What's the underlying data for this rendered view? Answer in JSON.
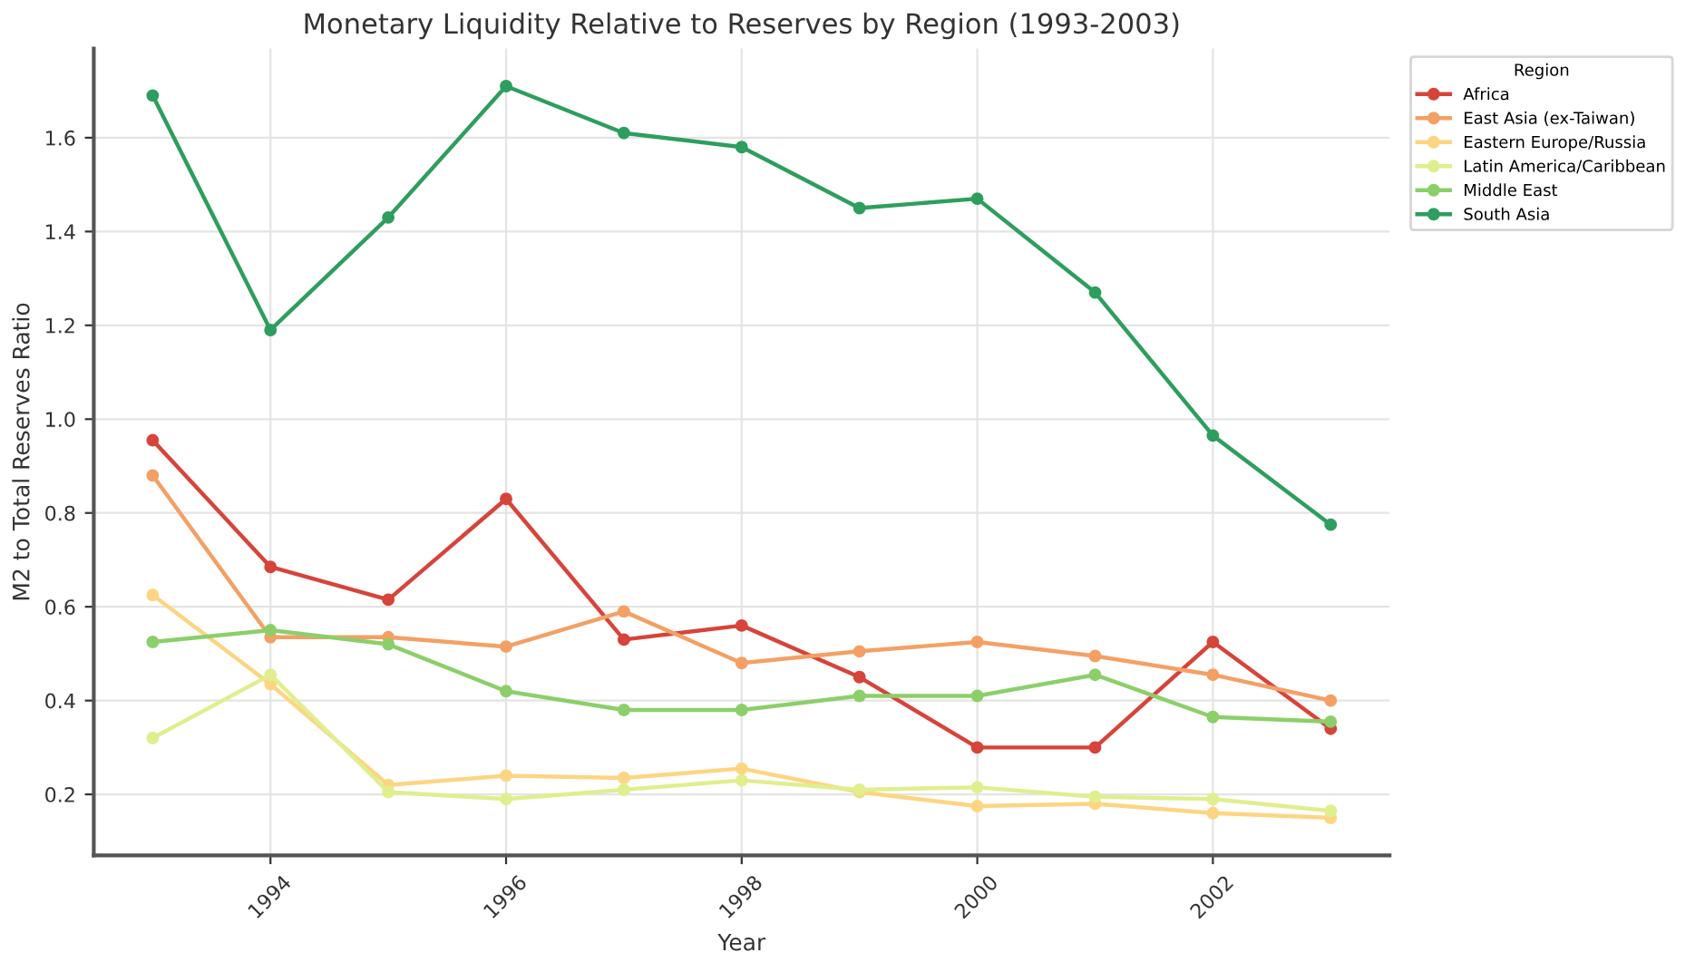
{
  "chart_data": {
    "type": "line",
    "title": "Monetary Liquidity Relative to Reserves by Region (1993-2003)",
    "xlabel": "Year",
    "ylabel": "M2 to Total Reserves Ratio",
    "legend_title": "Region",
    "x": [
      1993,
      1994,
      1995,
      1996,
      1997,
      1998,
      1999,
      2000,
      2001,
      2002,
      2003
    ],
    "series": [
      {
        "name": "Africa",
        "color": "#d7443a",
        "values": [
          0.955,
          0.685,
          0.615,
          0.83,
          0.53,
          0.56,
          0.45,
          0.3,
          0.3,
          0.525,
          0.34
        ]
      },
      {
        "name": "East Asia (ex-Taiwan)",
        "color": "#f4a065",
        "values": [
          0.88,
          0.535,
          0.535,
          0.515,
          0.59,
          0.48,
          0.505,
          0.525,
          0.495,
          0.455,
          0.4
        ]
      },
      {
        "name": "Eastern Europe/Russia",
        "color": "#fdd582",
        "values": [
          0.625,
          0.435,
          0.22,
          0.24,
          0.235,
          0.255,
          0.205,
          0.175,
          0.18,
          0.16,
          0.15
        ]
      },
      {
        "name": "Latin America/Caribbean",
        "color": "#e0ee8e",
        "values": [
          0.32,
          0.455,
          0.205,
          0.19,
          0.21,
          0.23,
          0.21,
          0.215,
          0.195,
          0.19,
          0.165
        ]
      },
      {
        "name": "Middle East",
        "color": "#8ccf6a",
        "values": [
          0.525,
          0.55,
          0.52,
          0.42,
          0.38,
          0.38,
          0.41,
          0.41,
          0.455,
          0.365,
          0.355
        ]
      },
      {
        "name": "South Asia",
        "color": "#2e9e5e",
        "values": [
          1.69,
          1.19,
          1.43,
          1.71,
          1.61,
          1.58,
          1.45,
          1.47,
          1.27,
          0.965,
          0.775
        ]
      }
    ],
    "xlim": [
      1992.5,
      2003.5
    ],
    "ylim": [
      0.07,
      1.79
    ],
    "xticks": [
      1994,
      1996,
      1998,
      2000,
      2002
    ],
    "yticks": [
      0.2,
      0.4,
      0.6,
      0.8,
      {
        "value": 1.0,
        "label": "1.0"
      },
      1.2,
      1.4,
      1.6
    ],
    "grid": true,
    "legend": "top right",
    "marker": "circle",
    "line_style": "solid"
  }
}
